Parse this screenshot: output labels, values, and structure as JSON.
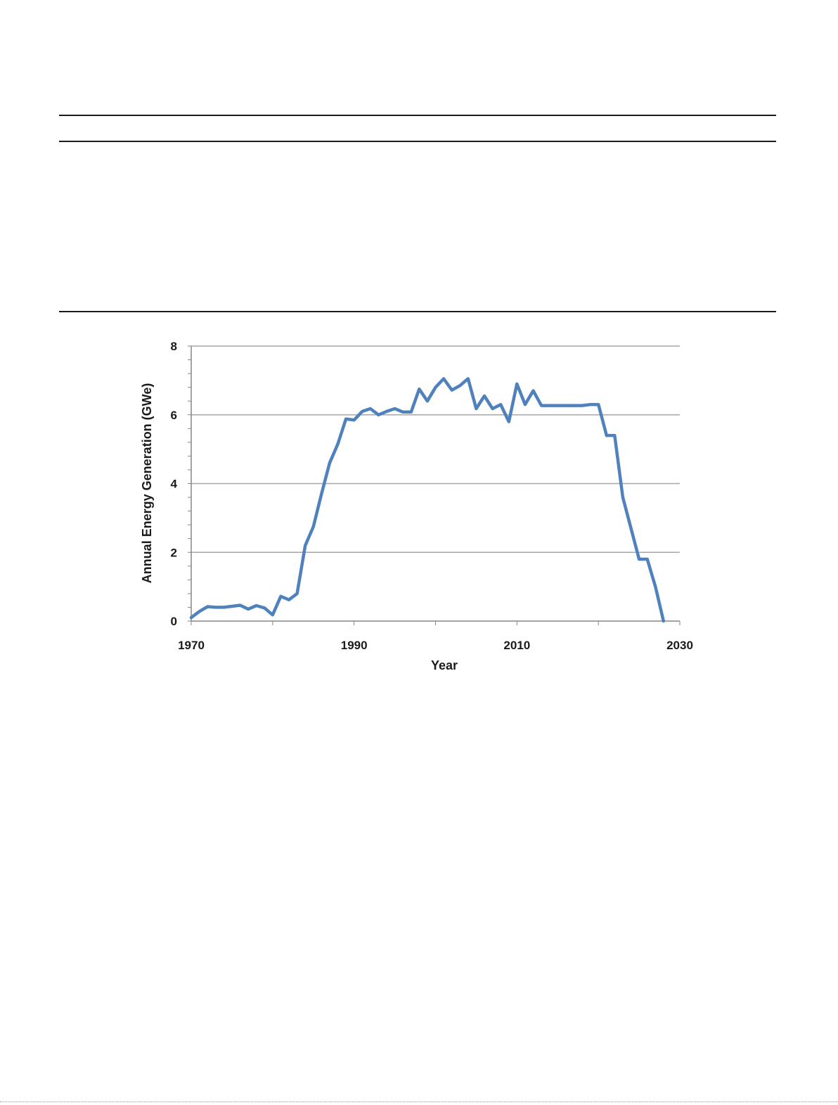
{
  "chart_data": {
    "type": "line",
    "title": "",
    "xlabel": "Year",
    "ylabel": "Annual Energy Generation (GWe)",
    "xlim": [
      1970,
      2030
    ],
    "ylim": [
      0,
      8
    ],
    "x_ticks": [
      1970,
      1990,
      2010,
      2030
    ],
    "y_ticks": [
      0,
      2,
      4,
      6,
      8
    ],
    "grid": "horizontal",
    "line_color": "#4f81bd",
    "gridline_color": "#a6a6a6",
    "series": [
      {
        "x": [
          1970,
          1971,
          1972,
          1973,
          1974,
          1975,
          1976,
          1977,
          1978,
          1979,
          1980,
          1981,
          1982,
          1983,
          1984,
          1985,
          1986,
          1987,
          1988,
          1989,
          1990,
          1991,
          1992,
          1993,
          1994,
          1995,
          1996,
          1997,
          1998,
          1999,
          2000,
          2001,
          2002,
          2003,
          2004,
          2005,
          2006,
          2007,
          2008,
          2009,
          2010,
          2011,
          2012,
          2013,
          2014,
          2015,
          2016,
          2017,
          2018,
          2019,
          2020,
          2021,
          2022,
          2023,
          2024,
          2025,
          2026,
          2027,
          2028
        ],
        "y": [
          0.1,
          0.28,
          0.42,
          0.4,
          0.4,
          0.43,
          0.46,
          0.35,
          0.45,
          0.38,
          0.18,
          0.72,
          0.62,
          0.8,
          2.2,
          2.75,
          3.7,
          4.6,
          5.15,
          5.88,
          5.85,
          6.1,
          6.18,
          6.0,
          6.1,
          6.18,
          6.08,
          6.08,
          6.75,
          6.4,
          6.8,
          7.05,
          6.72,
          6.85,
          7.05,
          6.18,
          6.55,
          6.18,
          6.3,
          5.8,
          6.9,
          6.3,
          6.7,
          6.27,
          6.27,
          6.27,
          6.27,
          6.27,
          6.27,
          6.3,
          6.3,
          5.4,
          5.4,
          3.6,
          2.7,
          1.8,
          1.8,
          1.0,
          0.0
        ]
      }
    ]
  }
}
